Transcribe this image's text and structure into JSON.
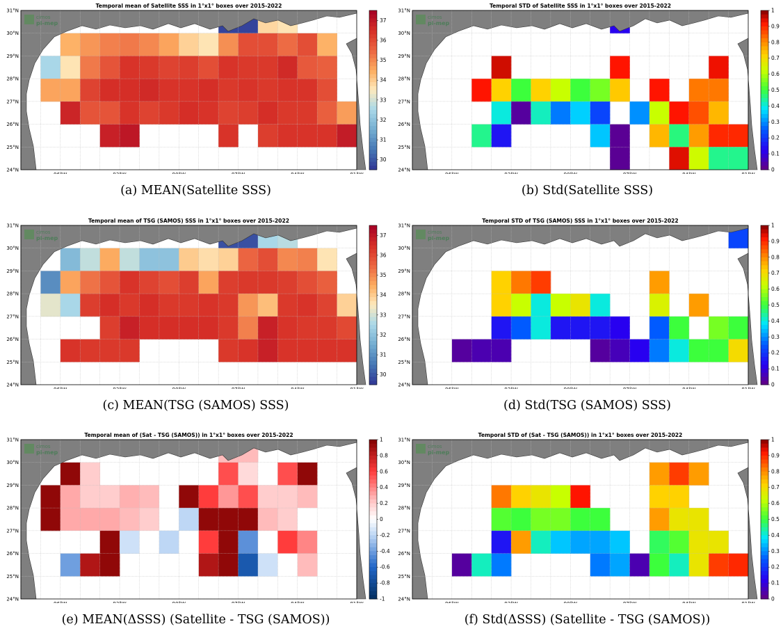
{
  "figure": {
    "lat_ticks": [
      "24°N",
      "25°N",
      "26°N",
      "27°N",
      "28°N",
      "29°N",
      "30°N",
      "31°N"
    ],
    "lon_ticks": [
      "96°W",
      "93°W",
      "90°W",
      "87°W",
      "84°W",
      "81°W"
    ],
    "logo": {
      "line1": "cimos",
      "line2": "pi-mep"
    }
  },
  "colors": {
    "land": "#7f7f7f",
    "no_data": "#ffffff",
    "missing_in_std": "#800000"
  },
  "chart_data": [
    {
      "type": "heatmap",
      "id": "a",
      "title": "Temporal mean of Satellite SSS in 1°x1° boxes over 2015-2022",
      "caption": "(a) MEAN(Satellite SSS)",
      "colormap": "RdYlBu_r",
      "clim": [
        29.5,
        37.5
      ],
      "colorbar_ticks": [
        "37",
        "36",
        "35",
        "34",
        "33",
        "32",
        "31",
        "30"
      ],
      "colorbar_values": [
        37,
        36,
        35,
        34,
        33,
        32,
        31,
        30
      ],
      "lon_range": [
        -98,
        -81
      ],
      "lat_range": [
        24,
        31
      ],
      "rows_lat_top_to_bottom": [
        30,
        29,
        28,
        27,
        26,
        25
      ],
      "cells": [
        [
          null,
          null,
          null,
          null,
          null,
          null,
          null,
          null,
          null,
          null,
          29.7,
          29.7,
          33.8,
          33.6,
          null,
          null,
          null
        ],
        [
          null,
          null,
          34.4,
          34.8,
          35.1,
          35.2,
          35.0,
          34.6,
          33.9,
          33.6,
          34.9,
          35.9,
          35.9,
          35.4,
          35.9,
          34.4,
          null
        ],
        [
          null,
          32.5,
          33.6,
          35.2,
          35.8,
          36.4,
          36.3,
          36.1,
          36.2,
          35.9,
          36.4,
          36.3,
          36.3,
          36.6,
          35.7,
          35.6,
          null
        ],
        [
          null,
          34.6,
          34.6,
          36.1,
          36.5,
          36.5,
          36.6,
          36.4,
          36.4,
          36.5,
          36.3,
          36.4,
          36.3,
          36.4,
          36.4,
          35.9,
          null
        ],
        [
          null,
          null,
          36.7,
          35.8,
          35.8,
          36.4,
          36.1,
          36.3,
          36.5,
          36.4,
          36.1,
          36.2,
          36.5,
          36.3,
          36.3,
          35.6,
          34.7
        ],
        [
          null,
          null,
          null,
          null,
          36.8,
          37.0,
          null,
          null,
          null,
          null,
          36.4,
          null,
          36.2,
          36.4,
          36.4,
          36.4,
          36.9
        ]
      ]
    },
    {
      "type": "heatmap",
      "id": "b",
      "title": "Temporal STD of Satellite SSS in 1°x1° boxes over 2015-2022",
      "caption": "(b) Std(Satellite SSS)",
      "colormap": "jet",
      "clim": [
        0,
        1
      ],
      "colorbar_ticks": [
        "1",
        "0.9",
        "0.8",
        "0.7",
        "0.6",
        "0.5",
        "0.4",
        "0.3",
        "0.2",
        "0.1",
        "0"
      ],
      "colorbar_values": [
        1,
        0.9,
        0.8,
        0.7,
        0.6,
        0.5,
        0.4,
        0.3,
        0.2,
        0.1,
        0
      ],
      "lon_range": [
        -98,
        -81
      ],
      "lat_range": [
        24,
        31
      ],
      "rows_lat_top_to_bottom": [
        30,
        29,
        28,
        27,
        26,
        25,
        24
      ],
      "cells": [
        [
          null,
          null,
          null,
          null,
          null,
          null,
          null,
          null,
          null,
          null,
          0.12,
          null,
          null,
          null,
          null,
          null,
          null
        ],
        [
          null,
          null,
          null,
          null,
          null,
          null,
          null,
          null,
          null,
          null,
          null,
          null,
          null,
          null,
          null,
          null,
          null
        ],
        [
          null,
          null,
          null,
          null,
          0.95,
          null,
          null,
          null,
          null,
          null,
          0.92,
          null,
          null,
          null,
          null,
          0.93,
          null
        ],
        [
          null,
          null,
          null,
          0.92,
          0.72,
          0.5,
          0.72,
          0.62,
          0.5,
          0.55,
          0.73,
          null,
          0.92,
          null,
          0.82,
          0.82,
          null
        ],
        [
          null,
          null,
          null,
          null,
          0.4,
          0.03,
          0.42,
          0.28,
          0.36,
          0.22,
          null,
          0.3,
          0.62,
          0.92,
          0.86,
          0.75,
          null
        ],
        [
          null,
          null,
          null,
          0.45,
          0.15,
          null,
          null,
          null,
          null,
          0.35,
          0.02,
          null,
          0.75,
          0.46,
          0.78,
          0.9,
          0.9
        ],
        [
          null,
          null,
          null,
          null,
          null,
          null,
          null,
          null,
          null,
          null,
          0.02,
          null,
          null,
          0.94,
          0.63,
          0.45,
          0.45
        ]
      ]
    },
    {
      "type": "heatmap",
      "id": "c",
      "title": "Temporal mean of TSG (SAMOS) SSS in 1°x1° boxes over 2015-2022",
      "caption": "(c) MEAN(TSG (SAMOS) SSS)",
      "colormap": "RdYlBu_r",
      "clim": [
        29.5,
        37.5
      ],
      "colorbar_ticks": [
        "37",
        "36",
        "35",
        "34",
        "33",
        "32",
        "31",
        "30"
      ],
      "colorbar_values": [
        37,
        36,
        35,
        34,
        33,
        32,
        31,
        30
      ],
      "lon_range": [
        -98,
        -81
      ],
      "lat_range": [
        24,
        31
      ],
      "rows_lat_top_to_bottom": [
        30,
        29,
        28,
        27,
        26,
        25
      ],
      "cells": [
        [
          null,
          null,
          null,
          null,
          null,
          null,
          null,
          null,
          null,
          null,
          29.9,
          29.9,
          32.5,
          32.7,
          null,
          null,
          null
        ],
        [
          null,
          null,
          31.8,
          32.8,
          34.5,
          32.8,
          32.0,
          32.0,
          34.0,
          33.7,
          33.9,
          35.5,
          35.9,
          35.0,
          35.1,
          33.6,
          null
        ],
        [
          null,
          30.9,
          34.6,
          35.3,
          35.8,
          36.4,
          36.1,
          35.9,
          36.2,
          34.6,
          36.2,
          36.3,
          36.3,
          36.2,
          35.9,
          35.6,
          null
        ],
        [
          null,
          33.2,
          32.5,
          36.2,
          36.5,
          36.3,
          36.5,
          36.3,
          36.3,
          36.4,
          36.3,
          34.8,
          34.2,
          36.3,
          36.4,
          36.1,
          33.9
        ],
        [
          null,
          null,
          null,
          null,
          36.2,
          36.8,
          36.5,
          36.5,
          36.5,
          36.5,
          36.3,
          35.1,
          36.8,
          36.4,
          36.3,
          36.3,
          36.0
        ],
        [
          null,
          null,
          36.4,
          36.3,
          36.3,
          36.3,
          null,
          null,
          null,
          null,
          36.3,
          36.4,
          36.8,
          36.4,
          36.4,
          36.4,
          36.4
        ]
      ]
    },
    {
      "type": "heatmap",
      "id": "d",
      "title": "Temporal STD of TSG (SAMOS) SSS in 1°x1° boxes over 2015-2022",
      "caption": "(d) Std(TSG (SAMOS) SSS)",
      "colormap": "jet",
      "clim": [
        0,
        1
      ],
      "colorbar_ticks": [
        "1",
        "0.9",
        "0.8",
        "0.7",
        "0.6",
        "0.5",
        "0.4",
        "0.3",
        "0.2",
        "0.1",
        "0"
      ],
      "colorbar_values": [
        1,
        0.9,
        0.8,
        0.7,
        0.6,
        0.5,
        0.4,
        0.3,
        0.2,
        0.1,
        0
      ],
      "lon_range": [
        -98,
        -81
      ],
      "lat_range": [
        24,
        31
      ],
      "rows_lat_top_to_bottom": [
        30,
        29,
        28,
        27,
        26,
        25
      ],
      "cells": [
        [
          null,
          null,
          null,
          null,
          null,
          null,
          null,
          null,
          null,
          null,
          null,
          null,
          null,
          null,
          null,
          null,
          0.22
        ],
        [
          null,
          null,
          null,
          null,
          null,
          null,
          null,
          null,
          null,
          null,
          null,
          null,
          null,
          null,
          null,
          null,
          null
        ],
        [
          null,
          null,
          null,
          null,
          0.72,
          0.82,
          0.88,
          null,
          null,
          null,
          null,
          null,
          0.78,
          null,
          null,
          null,
          null
        ],
        [
          null,
          null,
          null,
          null,
          0.72,
          0.62,
          0.4,
          0.62,
          0.68,
          0.4,
          null,
          null,
          0.65,
          null,
          0.78,
          null,
          null
        ],
        [
          null,
          null,
          null,
          null,
          0.15,
          0.25,
          0.4,
          0.15,
          0.15,
          0.15,
          0.12,
          null,
          0.25,
          0.5,
          null,
          0.55,
          0.5
        ],
        [
          null,
          null,
          0.03,
          0.05,
          0.05,
          null,
          null,
          null,
          null,
          0.03,
          0.06,
          0.12,
          0.28,
          0.4,
          0.5,
          0.5,
          0.7
        ]
      ]
    },
    {
      "type": "heatmap",
      "id": "e",
      "title": "Temporal mean of (Sat - TSG (SAMOS)) in 1°x1° boxes over 2015-2022",
      "caption": "(e) MEAN(ΔSSS) (Satellite - TSG (SAMOS))",
      "colormap": "RdBu_r",
      "clim": [
        -1,
        1
      ],
      "colorbar_ticks": [
        "1",
        "0.8",
        "0.6",
        "0.4",
        "0.2",
        "0",
        "-0.2",
        "-0.4",
        "-0.6",
        "-0.8",
        "-1"
      ],
      "colorbar_values": [
        1,
        0.8,
        0.6,
        0.4,
        0.2,
        0,
        -0.2,
        -0.4,
        -0.6,
        -0.8,
        -1
      ],
      "lon_range": [
        -98,
        -81
      ],
      "lat_range": [
        24,
        31
      ],
      "rows_lat_top_to_bottom": [
        30,
        29,
        28,
        27,
        26,
        25
      ],
      "cells": [
        [
          null,
          null,
          null,
          null,
          null,
          null,
          null,
          null,
          null,
          null,
          0.25,
          0.25,
          null,
          null,
          null,
          null,
          null
        ],
        [
          null,
          null,
          0.95,
          0.2,
          null,
          null,
          null,
          null,
          null,
          null,
          0.55,
          0.15,
          0.0,
          0.55,
          0.95,
          null,
          null
        ],
        [
          null,
          0.95,
          0.3,
          0.2,
          0.2,
          0.28,
          0.25,
          0.0,
          0.95,
          0.6,
          0.35,
          0.55,
          0.2,
          0.2,
          0.25,
          null,
          null
        ],
        [
          null,
          0.95,
          0.3,
          0.3,
          0.3,
          0.25,
          0.2,
          0.0,
          -0.2,
          0.95,
          0.95,
          0.95,
          0.25,
          0.2,
          0.0,
          0.0,
          null
        ],
        [
          null,
          null,
          0.0,
          0.0,
          0.95,
          -0.15,
          0.0,
          -0.2,
          0.0,
          0.6,
          0.95,
          -0.45,
          0.0,
          0.6,
          0.4,
          0.0,
          null
        ],
        [
          null,
          null,
          -0.4,
          0.85,
          0.95,
          null,
          null,
          null,
          null,
          0.85,
          0.95,
          -0.7,
          -0.15,
          0.0,
          0.25,
          null,
          null
        ]
      ]
    },
    {
      "type": "heatmap",
      "id": "f",
      "title": "Temporal STD of (Sat - TSG (SAMOS)) in 1°x1° boxes over 2015-2022",
      "caption": "(f) Std(ΔSSS) (Satellite - TSG (SAMOS))",
      "colormap": "jet",
      "clim": [
        0,
        1
      ],
      "colorbar_ticks": [
        "1",
        "0.9",
        "0.8",
        "0.7",
        "0.6",
        "0.5",
        "0.4",
        "0.3",
        "0.2",
        "0.1",
        "0"
      ],
      "colorbar_values": [
        1,
        0.9,
        0.8,
        0.7,
        0.6,
        0.5,
        0.4,
        0.3,
        0.2,
        0.1,
        0
      ],
      "lon_range": [
        -98,
        -81
      ],
      "lat_range": [
        24,
        31
      ],
      "rows_lat_top_to_bottom": [
        30,
        29,
        28,
        27,
        26,
        25
      ],
      "cells": [
        [
          null,
          null,
          null,
          null,
          null,
          null,
          null,
          null,
          null,
          null,
          null,
          null,
          null,
          null,
          null,
          null,
          null
        ],
        [
          null,
          null,
          null,
          null,
          null,
          null,
          null,
          null,
          null,
          null,
          null,
          null,
          0.78,
          0.88,
          0.78,
          null,
          null
        ],
        [
          null,
          null,
          null,
          null,
          0.82,
          0.72,
          0.68,
          0.62,
          0.92,
          null,
          null,
          null,
          0.72,
          0.72,
          null,
          null,
          null
        ],
        [
          null,
          null,
          null,
          null,
          0.52,
          0.5,
          0.55,
          0.55,
          0.5,
          0.5,
          null,
          null,
          0.78,
          0.68,
          0.68,
          null,
          null
        ],
        [
          null,
          null,
          null,
          null,
          0.15,
          0.78,
          0.42,
          0.35,
          0.32,
          0.32,
          0.35,
          null,
          0.48,
          0.52,
          0.68,
          0.68,
          null
        ],
        [
          null,
          null,
          0.03,
          0.42,
          0.28,
          null,
          null,
          null,
          null,
          0.28,
          0.32,
          0.05,
          0.5,
          0.42,
          0.68,
          0.88,
          0.9
        ]
      ]
    }
  ],
  "captions": [
    "(a) MEAN(Satellite SSS)",
    "(b) Std(Satellite SSS)",
    "(c) MEAN(TSG (SAMOS) SSS)",
    "(d) Std(TSG (SAMOS) SSS)",
    "(e) MEAN(ΔSSS) (Satellite - TSG (SAMOS))",
    "(f) Std(ΔSSS) (Satellite - TSG (SAMOS))"
  ]
}
